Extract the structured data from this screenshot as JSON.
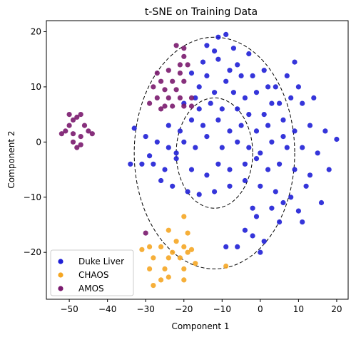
{
  "chart_data": {
    "type": "scatter",
    "title": "t-SNE on Training Data",
    "xlabel": "Component 1",
    "ylabel": "Component 2",
    "xlim": [
      -56,
      23
    ],
    "ylim": [
      -28.5,
      22
    ],
    "x_ticks": [
      -50,
      -40,
      -30,
      -20,
      -10,
      0,
      10,
      20
    ],
    "y_ticks": [
      -20,
      -10,
      0,
      10,
      20
    ],
    "x_tick_labels": [
      "−50",
      "−40",
      "−30",
      "−20",
      "−10",
      "0",
      "10",
      "20"
    ],
    "y_tick_labels": [
      "−20",
      "−10",
      "0",
      "10",
      "20"
    ],
    "grid": false,
    "legend_position": "lower-left",
    "circles": [
      {
        "cx": -12,
        "cy": -2,
        "r": 10,
        "style": "dashed"
      },
      {
        "cx": -12,
        "cy": -2,
        "r": 21,
        "style": "dashed"
      }
    ],
    "series": [
      {
        "name": "Duke Liver",
        "color": "#1f1fd6",
        "points": [
          [
            -11,
            19
          ],
          [
            -9,
            19.5
          ],
          [
            -14,
            17.5
          ],
          [
            -7,
            17
          ],
          [
            -3,
            16
          ],
          [
            -11,
            15
          ],
          [
            -18,
            12.5
          ],
          [
            -14,
            12
          ],
          [
            -9,
            11
          ],
          [
            -5,
            12
          ],
          [
            -2,
            12
          ],
          [
            1,
            13
          ],
          [
            2,
            10
          ],
          [
            -16,
            10
          ],
          [
            -12,
            9
          ],
          [
            -7,
            9
          ],
          [
            -4,
            8
          ],
          [
            -1,
            9
          ],
          [
            4,
            10
          ],
          [
            7,
            12
          ],
          [
            9,
            14.5
          ],
          [
            -20,
            7
          ],
          [
            -16,
            6
          ],
          [
            -13,
            7
          ],
          [
            -10,
            6
          ],
          [
            -6,
            6
          ],
          [
            -3,
            5
          ],
          [
            1,
            5
          ],
          [
            5,
            7
          ],
          [
            8,
            8
          ],
          [
            11,
            7
          ],
          [
            14,
            8
          ],
          [
            -24,
            3
          ],
          [
            -21,
            2
          ],
          [
            -18,
            4
          ],
          [
            -15,
            3
          ],
          [
            -11,
            4
          ],
          [
            -8,
            2
          ],
          [
            -5,
            3
          ],
          [
            -1,
            2
          ],
          [
            2,
            3
          ],
          [
            6,
            4
          ],
          [
            9,
            2
          ],
          [
            13,
            3
          ],
          [
            17,
            2
          ],
          [
            -33,
            2.5
          ],
          [
            -30,
            1
          ],
          [
            -27,
            0
          ],
          [
            -24,
            -1
          ],
          [
            -20,
            0
          ],
          [
            -17,
            -1
          ],
          [
            -14,
            1
          ],
          [
            -10,
            -1
          ],
          [
            -6,
            0
          ],
          [
            -3,
            -1
          ],
          [
            0,
            -2
          ],
          [
            3,
            0
          ],
          [
            7,
            -1
          ],
          [
            11,
            -1
          ],
          [
            15,
            -2
          ],
          [
            -34,
            -4
          ],
          [
            -31,
            -4
          ],
          [
            -28,
            -4
          ],
          [
            -25,
            -5
          ],
          [
            -22,
            -3
          ],
          [
            -18,
            -5
          ],
          [
            -14,
            -6
          ],
          [
            -11,
            -4
          ],
          [
            -8,
            -5
          ],
          [
            -4,
            -4
          ],
          [
            -1,
            -3
          ],
          [
            2,
            -5
          ],
          [
            5,
            -4
          ],
          [
            9,
            -5
          ],
          [
            13,
            -6
          ],
          [
            18,
            -5
          ],
          [
            -26,
            -7
          ],
          [
            -23,
            -8
          ],
          [
            -19,
            -9
          ],
          [
            -16,
            -9.5
          ],
          [
            -12,
            -9
          ],
          [
            -8,
            -8
          ],
          [
            -4,
            -7
          ],
          [
            0,
            -8
          ],
          [
            4,
            -9
          ],
          [
            8,
            -10
          ],
          [
            12,
            -8
          ],
          [
            -2,
            -12
          ],
          [
            3,
            -12
          ],
          [
            6,
            -11
          ],
          [
            10,
            -12.5
          ],
          [
            -1,
            -13.5
          ],
          [
            -4,
            -16
          ],
          [
            -2,
            -17
          ],
          [
            1,
            -18
          ],
          [
            5,
            -14.5
          ],
          [
            -9,
            -19
          ],
          [
            -6,
            -19
          ],
          [
            0,
            -20
          ],
          [
            20,
            0.5
          ],
          [
            16,
            -11
          ],
          [
            11,
            -14.5
          ],
          [
            -6,
            14
          ],
          [
            3,
            7
          ],
          [
            -15,
            14.5
          ],
          [
            -12,
            16.5
          ],
          [
            -8,
            13
          ],
          [
            6,
            1
          ],
          [
            -22,
            -2
          ],
          [
            -17,
            8
          ],
          [
            10,
            10
          ],
          [
            -29,
            -2.5
          ]
        ]
      },
      {
        "name": "CHAOS",
        "color": "#f5a623",
        "points": [
          [
            -20,
            -13.5
          ],
          [
            -24,
            -16
          ],
          [
            -22,
            -18
          ],
          [
            -19,
            -16.5
          ],
          [
            -23,
            -20
          ],
          [
            -20,
            -19
          ],
          [
            -18,
            -19.5
          ],
          [
            -26,
            -19
          ],
          [
            -29,
            -19
          ],
          [
            -31,
            -19.5
          ],
          [
            -28,
            -21
          ],
          [
            -24,
            -21
          ],
          [
            -21,
            -21
          ],
          [
            -29,
            -23
          ],
          [
            -25,
            -23
          ],
          [
            -20,
            -23
          ],
          [
            -17,
            -22
          ],
          [
            -24,
            -24.5
          ],
          [
            -20,
            -25
          ],
          [
            -28,
            -26
          ],
          [
            -26,
            -25
          ],
          [
            -9,
            -22.5
          ],
          [
            -19,
            -20
          ]
        ]
      },
      {
        "name": "AMOS",
        "color": "#7a1a6e",
        "points": [
          [
            -50,
            3
          ],
          [
            -48,
            4.5
          ],
          [
            -46,
            3
          ],
          [
            -49,
            1.5
          ],
          [
            -47,
            1
          ],
          [
            -45,
            2
          ],
          [
            -51,
            2
          ],
          [
            -49,
            0
          ],
          [
            -47,
            -0.5
          ],
          [
            -52,
            1.5
          ],
          [
            -48,
            -1
          ],
          [
            -44,
            1.5
          ],
          [
            -50,
            5
          ],
          [
            -47,
            5
          ],
          [
            -27,
            12.5
          ],
          [
            -24,
            13
          ],
          [
            -21,
            12.5
          ],
          [
            -26,
            11
          ],
          [
            -23,
            11
          ],
          [
            -20,
            11
          ],
          [
            -28,
            10
          ],
          [
            -25,
            9.5
          ],
          [
            -22,
            9.5
          ],
          [
            -27,
            8
          ],
          [
            -24,
            8
          ],
          [
            -21,
            8
          ],
          [
            -18,
            8
          ],
          [
            -29,
            7
          ],
          [
            -23,
            6.5
          ],
          [
            -20,
            6.5
          ],
          [
            -26,
            6
          ],
          [
            -21,
            14
          ],
          [
            -19,
            14
          ],
          [
            -20,
            15.5
          ],
          [
            -20,
            17
          ],
          [
            -22,
            17.5
          ],
          [
            -30,
            -16.5
          ],
          [
            -25,
            6.5
          ],
          [
            -18,
            6.5
          ],
          [
            -49,
            4
          ]
        ]
      }
    ]
  }
}
